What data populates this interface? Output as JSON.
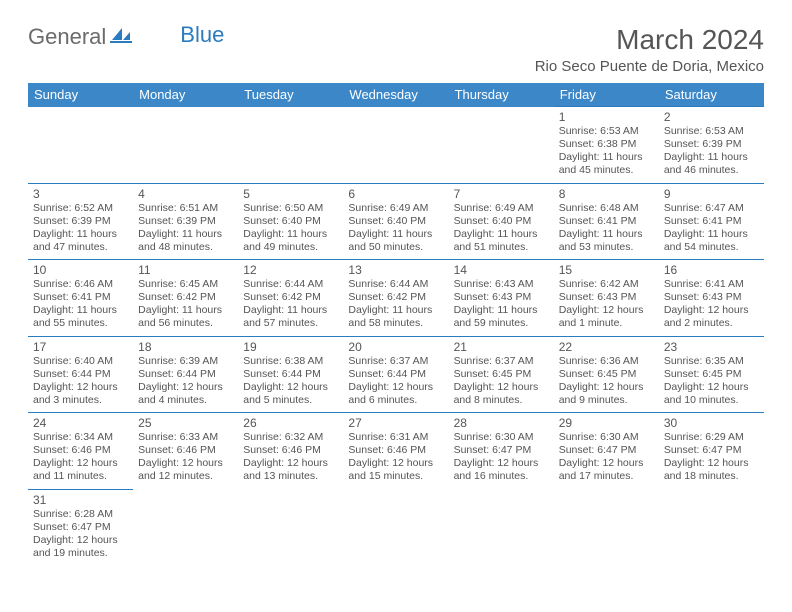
{
  "logo": {
    "general": "General",
    "blue": "Blue"
  },
  "title": "March 2024",
  "subtitle": "Rio Seco Puente de Doria, Mexico",
  "colors": {
    "header_bg": "#3b87c8",
    "header_text": "#ffffff",
    "border": "#2b7bbf",
    "text": "#555555",
    "logo_blue": "#2b7bbf"
  },
  "day_headers": [
    "Sunday",
    "Monday",
    "Tuesday",
    "Wednesday",
    "Thursday",
    "Friday",
    "Saturday"
  ],
  "weeks": [
    [
      null,
      null,
      null,
      null,
      null,
      {
        "n": "1",
        "sr": "6:53 AM",
        "ss": "6:38 PM",
        "dl": "11 hours and 45 minutes."
      },
      {
        "n": "2",
        "sr": "6:53 AM",
        "ss": "6:39 PM",
        "dl": "11 hours and 46 minutes."
      }
    ],
    [
      {
        "n": "3",
        "sr": "6:52 AM",
        "ss": "6:39 PM",
        "dl": "11 hours and 47 minutes."
      },
      {
        "n": "4",
        "sr": "6:51 AM",
        "ss": "6:39 PM",
        "dl": "11 hours and 48 minutes."
      },
      {
        "n": "5",
        "sr": "6:50 AM",
        "ss": "6:40 PM",
        "dl": "11 hours and 49 minutes."
      },
      {
        "n": "6",
        "sr": "6:49 AM",
        "ss": "6:40 PM",
        "dl": "11 hours and 50 minutes."
      },
      {
        "n": "7",
        "sr": "6:49 AM",
        "ss": "6:40 PM",
        "dl": "11 hours and 51 minutes."
      },
      {
        "n": "8",
        "sr": "6:48 AM",
        "ss": "6:41 PM",
        "dl": "11 hours and 53 minutes."
      },
      {
        "n": "9",
        "sr": "6:47 AM",
        "ss": "6:41 PM",
        "dl": "11 hours and 54 minutes."
      }
    ],
    [
      {
        "n": "10",
        "sr": "6:46 AM",
        "ss": "6:41 PM",
        "dl": "11 hours and 55 minutes."
      },
      {
        "n": "11",
        "sr": "6:45 AM",
        "ss": "6:42 PM",
        "dl": "11 hours and 56 minutes."
      },
      {
        "n": "12",
        "sr": "6:44 AM",
        "ss": "6:42 PM",
        "dl": "11 hours and 57 minutes."
      },
      {
        "n": "13",
        "sr": "6:44 AM",
        "ss": "6:42 PM",
        "dl": "11 hours and 58 minutes."
      },
      {
        "n": "14",
        "sr": "6:43 AM",
        "ss": "6:43 PM",
        "dl": "11 hours and 59 minutes."
      },
      {
        "n": "15",
        "sr": "6:42 AM",
        "ss": "6:43 PM",
        "dl": "12 hours and 1 minute."
      },
      {
        "n": "16",
        "sr": "6:41 AM",
        "ss": "6:43 PM",
        "dl": "12 hours and 2 minutes."
      }
    ],
    [
      {
        "n": "17",
        "sr": "6:40 AM",
        "ss": "6:44 PM",
        "dl": "12 hours and 3 minutes."
      },
      {
        "n": "18",
        "sr": "6:39 AM",
        "ss": "6:44 PM",
        "dl": "12 hours and 4 minutes."
      },
      {
        "n": "19",
        "sr": "6:38 AM",
        "ss": "6:44 PM",
        "dl": "12 hours and 5 minutes."
      },
      {
        "n": "20",
        "sr": "6:37 AM",
        "ss": "6:44 PM",
        "dl": "12 hours and 6 minutes."
      },
      {
        "n": "21",
        "sr": "6:37 AM",
        "ss": "6:45 PM",
        "dl": "12 hours and 8 minutes."
      },
      {
        "n": "22",
        "sr": "6:36 AM",
        "ss": "6:45 PM",
        "dl": "12 hours and 9 minutes."
      },
      {
        "n": "23",
        "sr": "6:35 AM",
        "ss": "6:45 PM",
        "dl": "12 hours and 10 minutes."
      }
    ],
    [
      {
        "n": "24",
        "sr": "6:34 AM",
        "ss": "6:46 PM",
        "dl": "12 hours and 11 minutes."
      },
      {
        "n": "25",
        "sr": "6:33 AM",
        "ss": "6:46 PM",
        "dl": "12 hours and 12 minutes."
      },
      {
        "n": "26",
        "sr": "6:32 AM",
        "ss": "6:46 PM",
        "dl": "12 hours and 13 minutes."
      },
      {
        "n": "27",
        "sr": "6:31 AM",
        "ss": "6:46 PM",
        "dl": "12 hours and 15 minutes."
      },
      {
        "n": "28",
        "sr": "6:30 AM",
        "ss": "6:47 PM",
        "dl": "12 hours and 16 minutes."
      },
      {
        "n": "29",
        "sr": "6:30 AM",
        "ss": "6:47 PM",
        "dl": "12 hours and 17 minutes."
      },
      {
        "n": "30",
        "sr": "6:29 AM",
        "ss": "6:47 PM",
        "dl": "12 hours and 18 minutes."
      }
    ],
    [
      {
        "n": "31",
        "sr": "6:28 AM",
        "ss": "6:47 PM",
        "dl": "12 hours and 19 minutes."
      },
      null,
      null,
      null,
      null,
      null,
      null
    ]
  ],
  "labels": {
    "sunrise": "Sunrise: ",
    "sunset": "Sunset: ",
    "daylight": "Daylight: "
  }
}
